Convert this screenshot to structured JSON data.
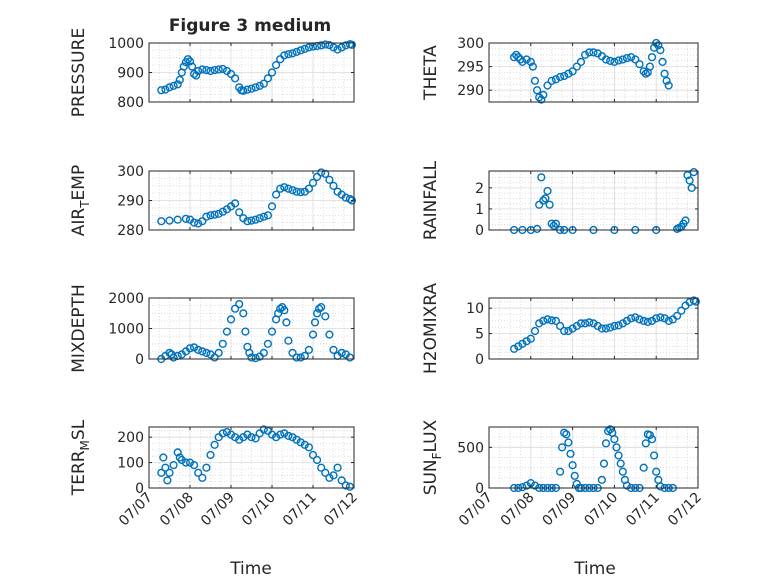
{
  "figure": {
    "title": "Figure 3 medium",
    "xlabel": "Time",
    "x_tick_labels": [
      "07/07",
      "07/08",
      "07/09",
      "07/10",
      "07/11",
      "07/12"
    ],
    "marker_color": "#0072BD"
  },
  "chart_data": [
    {
      "type": "scatter",
      "ylabel": "PRESSURE",
      "xlim": [
        0,
        5
      ],
      "ylim": [
        800,
        1000
      ],
      "yticks": [
        800,
        900,
        1000
      ],
      "grid": true,
      "x": [
        0.3,
        0.4,
        0.5,
        0.6,
        0.7,
        0.75,
        0.8,
        0.85,
        0.9,
        0.95,
        1.0,
        1.05,
        1.1,
        1.15,
        1.2,
        1.3,
        1.4,
        1.5,
        1.6,
        1.7,
        1.8,
        1.9,
        2.0,
        2.1,
        2.2,
        2.25,
        2.3,
        2.4,
        2.5,
        2.6,
        2.7,
        2.8,
        2.9,
        3.0,
        3.1,
        3.2,
        3.3,
        3.4,
        3.5,
        3.6,
        3.7,
        3.8,
        3.9,
        4.0,
        4.1,
        4.2,
        4.3,
        4.4,
        4.5,
        4.6,
        4.7,
        4.8,
        4.9,
        4.95
      ],
      "y": [
        840,
        842,
        850,
        855,
        860,
        875,
        900,
        920,
        935,
        945,
        938,
        920,
        895,
        890,
        905,
        910,
        908,
        905,
        908,
        910,
        912,
        905,
        895,
        880,
        850,
        840,
        838,
        842,
        845,
        850,
        855,
        862,
        880,
        900,
        925,
        945,
        958,
        962,
        965,
        970,
        975,
        980,
        985,
        988,
        990,
        992,
        995,
        993,
        985,
        978,
        985,
        992,
        996,
        994
      ]
    },
    {
      "type": "scatter",
      "ylabel": "THETA",
      "xlim": [
        0,
        5
      ],
      "ylim": [
        287.5,
        300
      ],
      "yticks": [
        290,
        295,
        300
      ],
      "grid": true,
      "x": [
        0.6,
        0.65,
        0.7,
        0.75,
        0.8,
        0.9,
        1.0,
        1.05,
        1.1,
        1.15,
        1.2,
        1.25,
        1.3,
        1.4,
        1.5,
        1.6,
        1.7,
        1.8,
        1.9,
        2.0,
        2.1,
        2.2,
        2.3,
        2.4,
        2.5,
        2.6,
        2.7,
        2.8,
        2.9,
        3.0,
        3.1,
        3.2,
        3.3,
        3.4,
        3.5,
        3.6,
        3.7,
        3.75,
        3.8,
        3.85,
        3.9,
        3.95,
        4.0,
        4.05,
        4.1,
        4.15,
        4.2,
        4.25,
        4.3
      ],
      "y": [
        297,
        297.5,
        297,
        296.5,
        296,
        296.5,
        296,
        295,
        292,
        290,
        288.5,
        288,
        289,
        291,
        292,
        292.3,
        292.8,
        293,
        293.5,
        294,
        295,
        296,
        297.5,
        298,
        298,
        297.8,
        297.2,
        296.5,
        296.2,
        296,
        296.3,
        296.5,
        296.8,
        297,
        296.5,
        295.5,
        294,
        293.5,
        293.8,
        295,
        297,
        299,
        300,
        299.5,
        298.5,
        296,
        293.5,
        292,
        291
      ]
    },
    {
      "type": "scatter",
      "ylabel": "AIR_TEMP",
      "xlim": [
        0,
        5
      ],
      "ylim": [
        280,
        300
      ],
      "yticks": [
        280,
        290,
        300
      ],
      "grid": true,
      "x": [
        0.3,
        0.5,
        0.7,
        0.9,
        1.0,
        1.1,
        1.2,
        1.3,
        1.4,
        1.5,
        1.6,
        1.7,
        1.8,
        1.9,
        2.0,
        2.1,
        2.2,
        2.3,
        2.4,
        2.5,
        2.6,
        2.7,
        2.8,
        2.9,
        3.0,
        3.1,
        3.2,
        3.3,
        3.4,
        3.5,
        3.6,
        3.7,
        3.8,
        3.9,
        4.0,
        4.1,
        4.2,
        4.3,
        4.4,
        4.5,
        4.6,
        4.7,
        4.8,
        4.9,
        4.95
      ],
      "y": [
        283,
        283.2,
        283.5,
        283.8,
        283.5,
        282.5,
        282.2,
        283,
        284.5,
        285,
        285.2,
        285.5,
        286.2,
        287,
        288,
        289,
        286,
        284,
        283,
        283.2,
        283.5,
        284,
        284.5,
        285,
        288,
        292,
        294,
        294.5,
        294,
        293.5,
        293,
        292.8,
        293,
        294,
        296,
        298,
        299.5,
        299,
        297,
        295,
        293,
        292,
        291,
        290.5,
        290
      ]
    },
    {
      "type": "scatter",
      "ylabel": "RAINFALL",
      "xlim": [
        0,
        5
      ],
      "ylim": [
        0,
        2.8
      ],
      "yticks": [
        0,
        1,
        2
      ],
      "grid": true,
      "x": [
        0.6,
        0.8,
        1.0,
        1.15,
        1.2,
        1.25,
        1.3,
        1.35,
        1.4,
        1.45,
        1.5,
        1.55,
        1.6,
        1.7,
        1.8,
        2.0,
        2.5,
        3.0,
        3.5,
        4.0,
        4.5,
        4.55,
        4.6,
        4.65,
        4.7,
        4.75,
        4.8,
        4.85,
        4.9
      ],
      "y": [
        0,
        0,
        0,
        0.05,
        1.2,
        2.5,
        1.4,
        1.5,
        1.85,
        1.2,
        0.3,
        0.2,
        0.3,
        0,
        0,
        0,
        0,
        0,
        0,
        0,
        0.05,
        0.1,
        0.15,
        0.3,
        0.45,
        2.6,
        2.35,
        2.0,
        2.75
      ]
    },
    {
      "type": "scatter",
      "ylabel": "MIXDEPTH",
      "xlim": [
        0,
        5
      ],
      "ylim": [
        0,
        2000
      ],
      "yticks": [
        0,
        1000,
        2000
      ],
      "grid": true,
      "x": [
        0.3,
        0.4,
        0.5,
        0.55,
        0.6,
        0.7,
        0.8,
        0.9,
        1.0,
        1.1,
        1.2,
        1.3,
        1.4,
        1.5,
        1.6,
        1.7,
        1.8,
        1.9,
        2.0,
        2.1,
        2.2,
        2.3,
        2.35,
        2.4,
        2.45,
        2.5,
        2.6,
        2.7,
        2.8,
        2.9,
        3.0,
        3.1,
        3.15,
        3.2,
        3.25,
        3.3,
        3.35,
        3.4,
        3.5,
        3.6,
        3.7,
        3.8,
        3.9,
        4.0,
        4.05,
        4.1,
        4.15,
        4.2,
        4.3,
        4.4,
        4.5,
        4.6,
        4.7,
        4.8,
        4.9
      ],
      "y": [
        0,
        100,
        200,
        150,
        50,
        100,
        150,
        250,
        350,
        380,
        300,
        250,
        200,
        150,
        50,
        200,
        500,
        900,
        1300,
        1650,
        1800,
        1500,
        900,
        400,
        200,
        50,
        30,
        80,
        200,
        500,
        900,
        1300,
        1500,
        1650,
        1700,
        1600,
        1200,
        600,
        200,
        50,
        50,
        100,
        300,
        800,
        1200,
        1500,
        1650,
        1700,
        1400,
        800,
        300,
        100,
        200,
        150,
        50
      ]
    },
    {
      "type": "scatter",
      "ylabel": "H2OMIXRA",
      "xlim": [
        0,
        5
      ],
      "ylim": [
        0,
        12
      ],
      "yticks": [
        0,
        5,
        10
      ],
      "grid": true,
      "x": [
        0.6,
        0.7,
        0.8,
        0.9,
        1.0,
        1.1,
        1.2,
        1.3,
        1.4,
        1.5,
        1.6,
        1.7,
        1.8,
        1.9,
        2.0,
        2.1,
        2.2,
        2.3,
        2.4,
        2.5,
        2.6,
        2.7,
        2.8,
        2.9,
        3.0,
        3.1,
        3.2,
        3.3,
        3.4,
        3.5,
        3.6,
        3.7,
        3.8,
        3.9,
        4.0,
        4.1,
        4.2,
        4.3,
        4.4,
        4.5,
        4.6,
        4.7,
        4.8,
        4.9,
        4.95
      ],
      "y": [
        2,
        2.5,
        3,
        3.5,
        4,
        5.5,
        7,
        7.5,
        7.8,
        7.6,
        7.5,
        6.5,
        5.5,
        5.5,
        6,
        6.5,
        7,
        7,
        7.2,
        7,
        6.5,
        6,
        6,
        6.2,
        6.5,
        6.6,
        7,
        7.5,
        8,
        8.2,
        7.8,
        7.5,
        7.3,
        7.5,
        8,
        8.2,
        8,
        7.5,
        7.8,
        8.5,
        9.5,
        10.5,
        11.2,
        11.5,
        11.3
      ]
    },
    {
      "type": "scatter",
      "ylabel": "TERR_MSL",
      "xlim": [
        0,
        5
      ],
      "ylim": [
        0,
        240
      ],
      "yticks": [
        0,
        100,
        200
      ],
      "grid": true,
      "x": [
        0.3,
        0.35,
        0.4,
        0.45,
        0.5,
        0.6,
        0.7,
        0.75,
        0.8,
        0.9,
        1.0,
        1.1,
        1.2,
        1.3,
        1.4,
        1.5,
        1.6,
        1.7,
        1.8,
        1.9,
        2.0,
        2.1,
        2.2,
        2.3,
        2.4,
        2.5,
        2.6,
        2.7,
        2.8,
        2.9,
        3.0,
        3.1,
        3.2,
        3.3,
        3.4,
        3.5,
        3.6,
        3.7,
        3.8,
        3.9,
        4.0,
        4.1,
        4.2,
        4.3,
        4.4,
        4.5,
        4.6,
        4.7,
        4.8,
        4.9
      ],
      "y": [
        60,
        120,
        80,
        30,
        60,
        90,
        140,
        120,
        110,
        100,
        100,
        90,
        60,
        40,
        80,
        130,
        170,
        200,
        215,
        220,
        210,
        200,
        190,
        200,
        210,
        200,
        195,
        215,
        230,
        225,
        210,
        200,
        210,
        215,
        205,
        200,
        190,
        180,
        170,
        160,
        130,
        110,
        80,
        60,
        40,
        50,
        80,
        30,
        10,
        5
      ]
    },
    {
      "type": "scatter",
      "ylabel": "SUN_FLUX",
      "xlim": [
        0,
        5
      ],
      "ylim": [
        0,
        750
      ],
      "yticks": [
        0,
        500
      ],
      "grid": true,
      "x": [
        0.6,
        0.7,
        0.8,
        0.9,
        1.0,
        1.1,
        1.2,
        1.3,
        1.4,
        1.5,
        1.6,
        1.7,
        1.75,
        1.8,
        1.85,
        1.9,
        1.95,
        2.0,
        2.05,
        2.1,
        2.15,
        2.2,
        2.3,
        2.4,
        2.5,
        2.6,
        2.7,
        2.75,
        2.8,
        2.85,
        2.9,
        2.95,
        3.0,
        3.05,
        3.1,
        3.15,
        3.2,
        3.25,
        3.3,
        3.4,
        3.5,
        3.6,
        3.7,
        3.75,
        3.8,
        3.85,
        3.9,
        3.95,
        4.0,
        4.05,
        4.1,
        4.2,
        4.3,
        4.4
      ],
      "y": [
        0,
        0,
        10,
        30,
        60,
        30,
        0,
        0,
        0,
        0,
        0,
        200,
        500,
        680,
        660,
        560,
        420,
        280,
        150,
        50,
        0,
        0,
        0,
        0,
        0,
        0,
        100,
        300,
        550,
        700,
        720,
        680,
        600,
        500,
        400,
        300,
        200,
        100,
        30,
        0,
        0,
        0,
        250,
        550,
        660,
        650,
        600,
        400,
        200,
        100,
        20,
        0,
        0,
        0
      ]
    }
  ]
}
